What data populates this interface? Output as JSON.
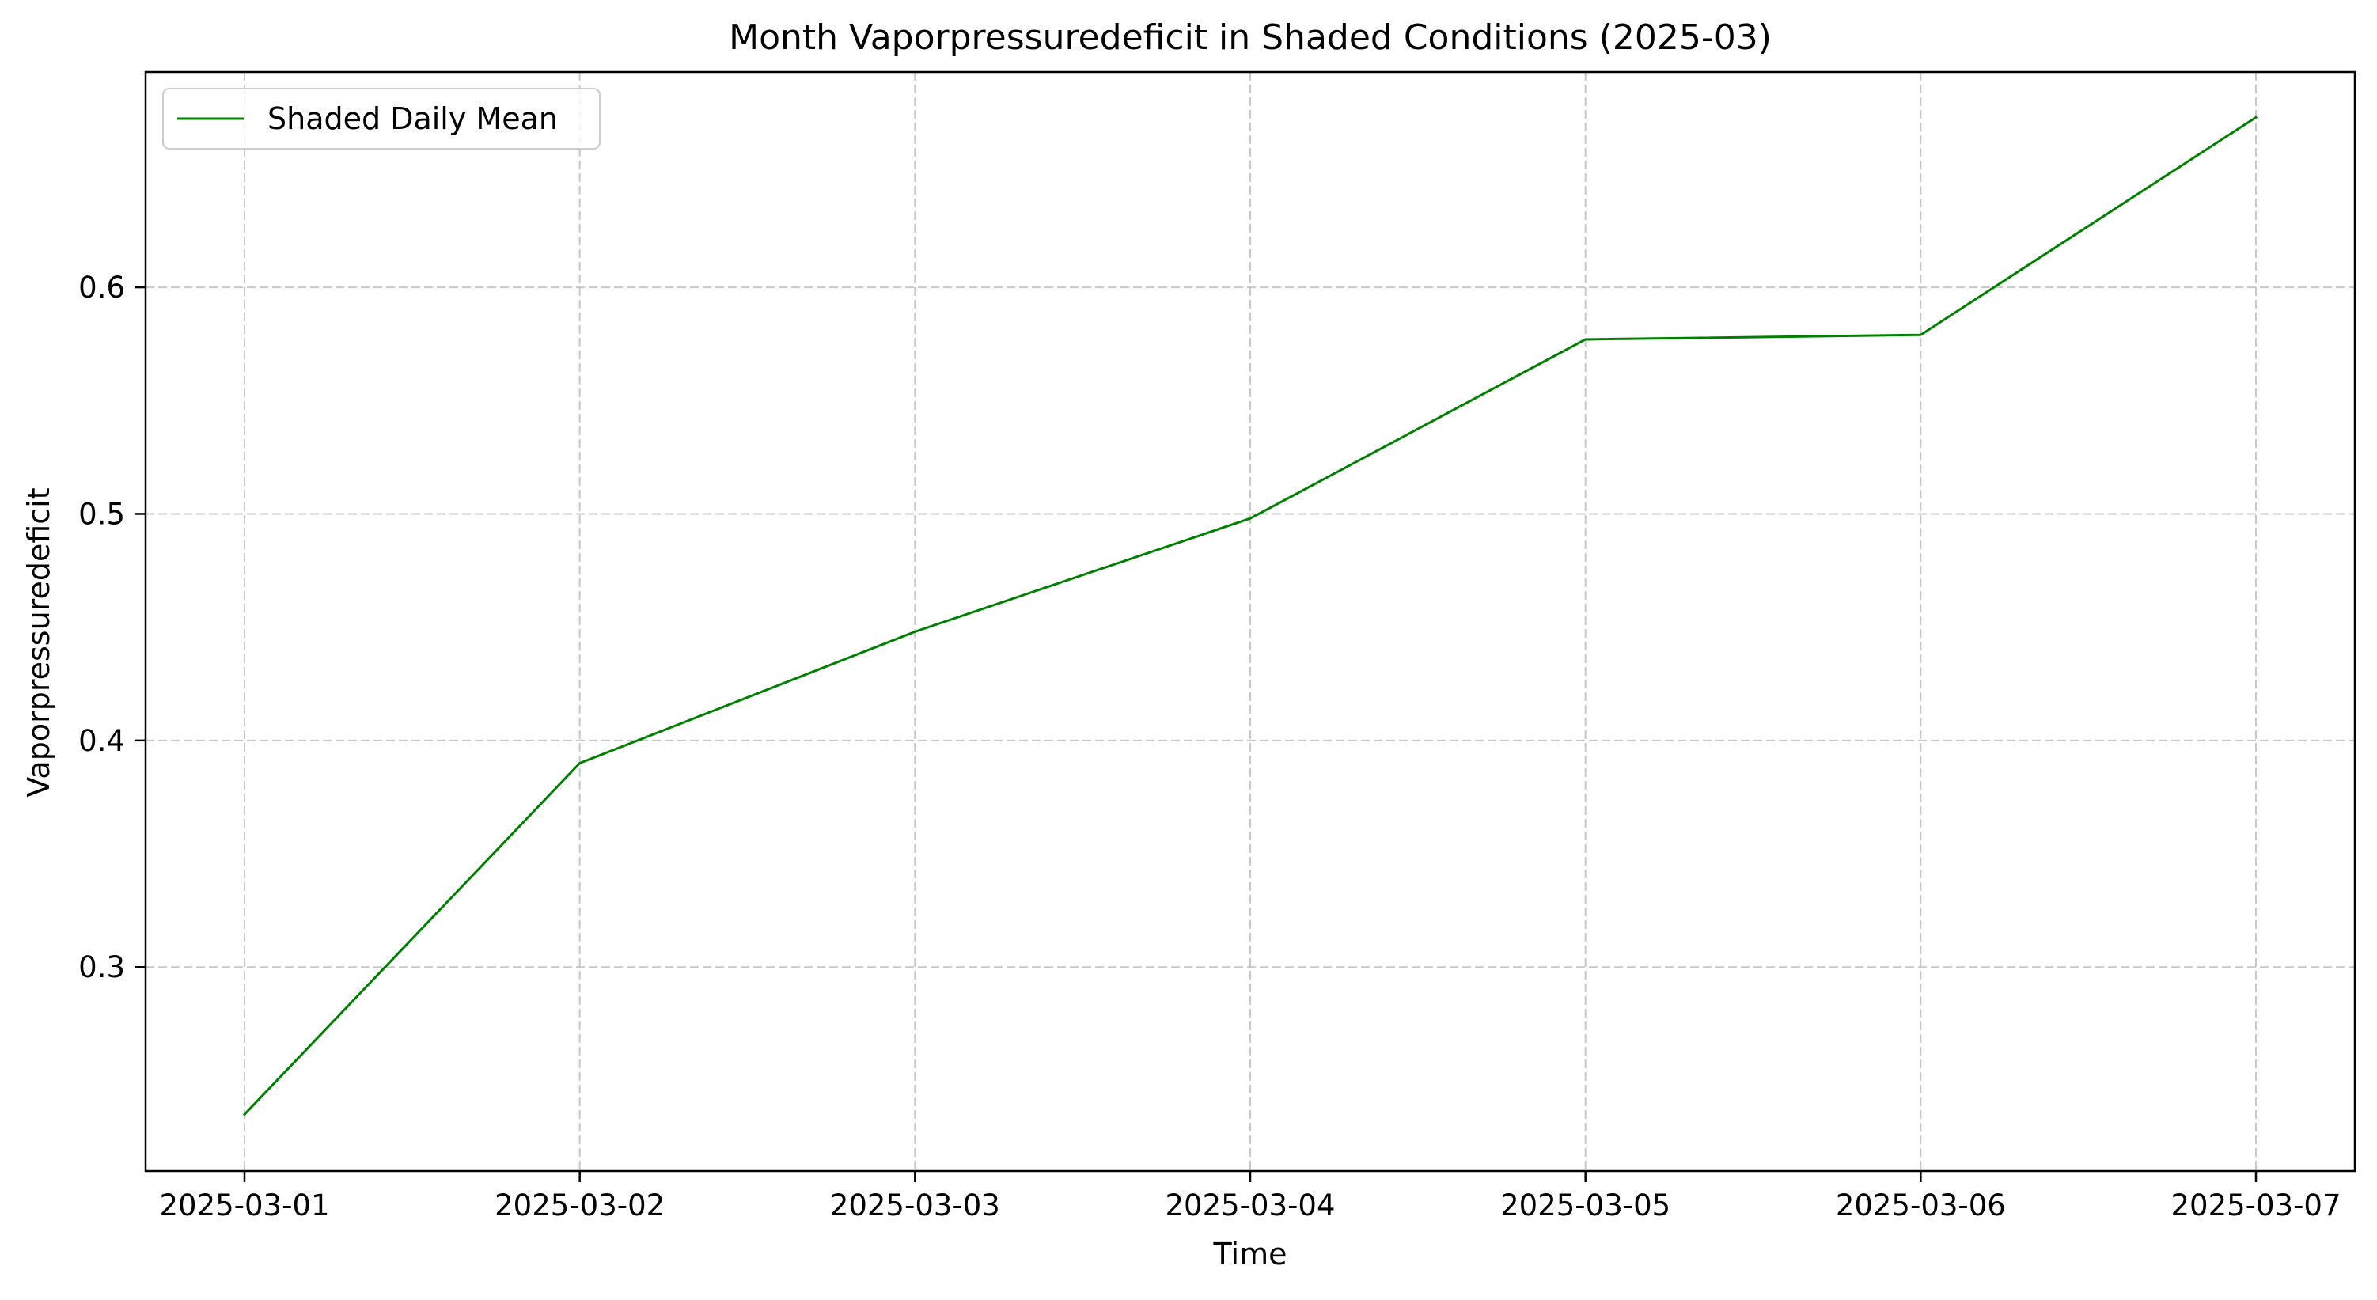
{
  "chart_data": {
    "type": "line",
    "title": "Month Vaporpressuredeficit in Shaded Conditions (2025-03)",
    "xlabel": "Time",
    "ylabel": "Vaporpressuredeficit",
    "x": [
      "2025-03-01",
      "2025-03-02",
      "2025-03-03",
      "2025-03-04",
      "2025-03-05",
      "2025-03-06",
      "2025-03-07"
    ],
    "series": [
      {
        "name": "Shaded Daily Mean",
        "color": "#008000",
        "values": [
          0.235,
          0.39,
          0.448,
          0.498,
          0.577,
          0.579,
          0.675
        ]
      }
    ],
    "ylim": [
      0.21,
      0.695
    ],
    "yticks": [
      0.3,
      0.4,
      0.5,
      0.6
    ],
    "ytick_labels": [
      "0.3",
      "0.4",
      "0.5",
      "0.6"
    ],
    "grid": true,
    "legend_position": "top-left"
  }
}
